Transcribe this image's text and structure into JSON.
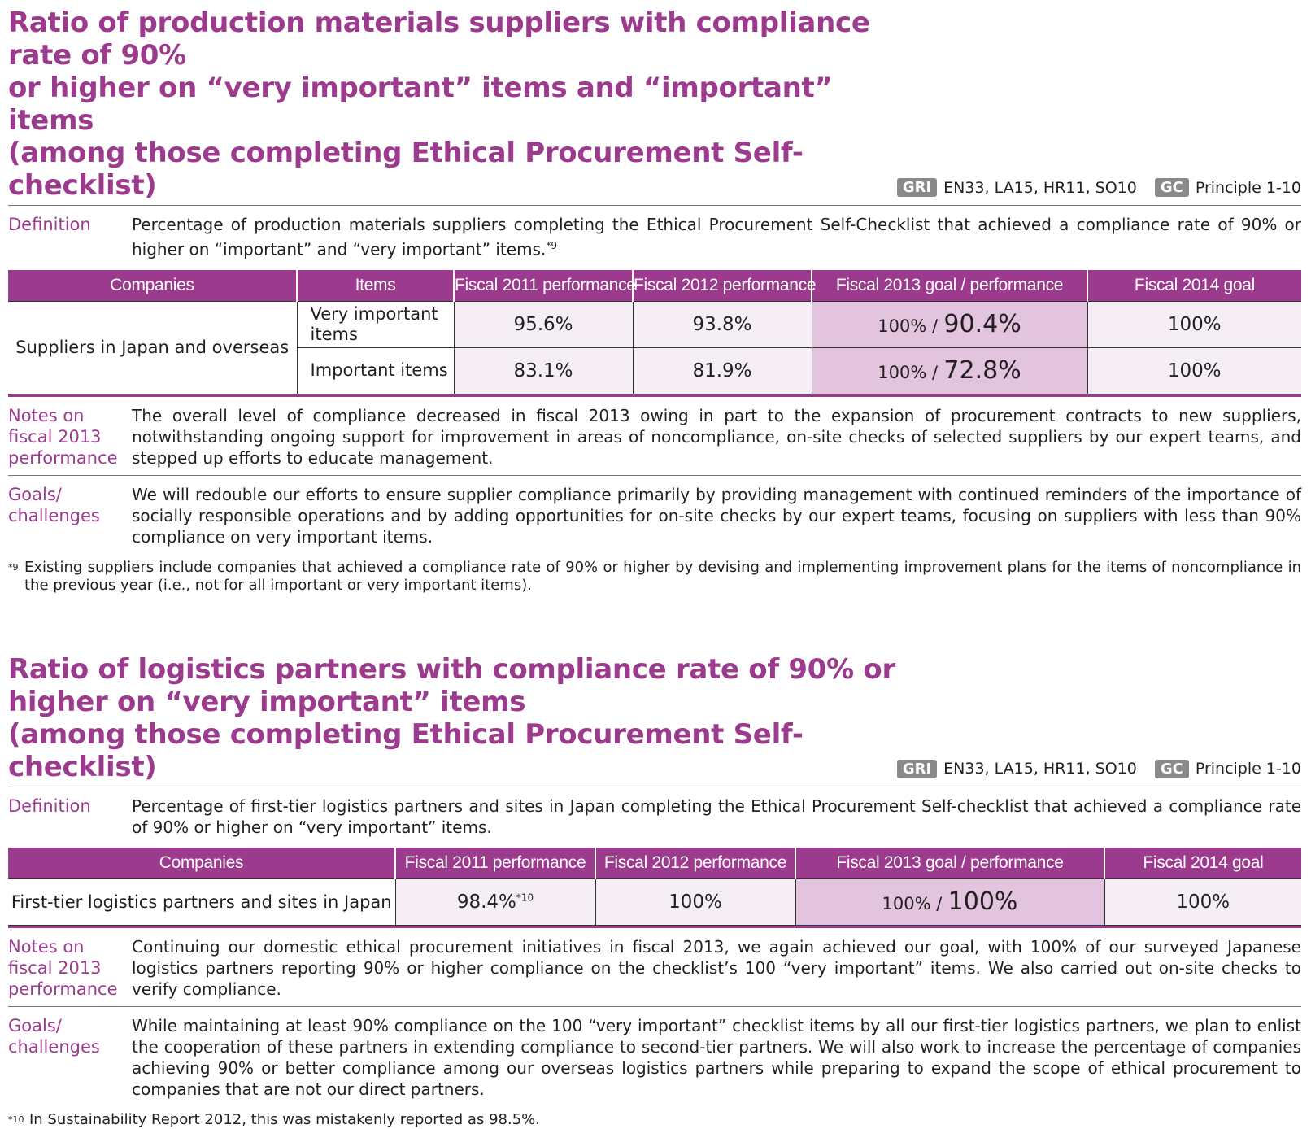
{
  "section1": {
    "title_line1": "Ratio of production materials suppliers with compliance rate of 90%",
    "title_line2": "or higher on “very important” items and “important” items",
    "title_line3": "(among those completing Ethical Procurement Self-checklist)",
    "gri_tag": "GRI",
    "gri_value": "EN33, LA15, HR11, SO10",
    "gc_tag": "GC",
    "gc_value": "Principle 1-10",
    "definition_label": "Definition",
    "definition_text": "Percentage of production materials suppliers completing the Ethical Procurement Self-Checklist that achieved a compliance rate of 90% or higher on “important” and “very important” items.",
    "definition_footnote_mark": "*9",
    "table": {
      "headers": [
        "Companies",
        "Items",
        "Fiscal 2011 performance",
        "Fiscal 2012 performance",
        "Fiscal 2013 goal / performance",
        "Fiscal 2014 goal"
      ],
      "company": "Suppliers in Japan and overseas",
      "rows": [
        {
          "item": "Very important items",
          "fy2011": "95.6%",
          "fy2012": "93.8%",
          "fy2013_goal": "100% /",
          "fy2013_perf": "90.4%",
          "fy2014": "100%"
        },
        {
          "item": "Important items",
          "fy2011": "83.1%",
          "fy2012": "81.9%",
          "fy2013_goal": "100% /",
          "fy2013_perf": "72.8%",
          "fy2014": "100%"
        }
      ]
    },
    "notes_label": "Notes on fiscal 2013 performance",
    "notes_text": "The overall level of compliance decreased in fiscal 2013 owing in part to the expansion of procurement contracts to new suppliers, notwithstanding ongoing support for improvement in areas of noncompliance, on-site checks of selected suppliers by our expert teams, and stepped up efforts to educate management.",
    "goals_label": "Goals/ challenges",
    "goals_text": "We will redouble our efforts to ensure supplier compliance primarily by providing management with continued reminders of the importance of socially responsible operations and by adding opportunities for on-site checks by our expert teams, focusing on suppliers with less than 90% compliance on very important items.",
    "footnote_mark": "*9",
    "footnote_text": "Existing suppliers include companies that achieved a compliance rate of 90% or higher by devising and implementing improvement plans for the items of noncompliance in the previous year (i.e., not for all important or very important items)."
  },
  "section2": {
    "title_line1": "Ratio of logistics partners with compliance rate of 90% or higher on “very important” items",
    "title_line2": "(among those completing Ethical Procurement Self-checklist)",
    "gri_tag": "GRI",
    "gri_value": "EN33, LA15, HR11, SO10",
    "gc_tag": "GC",
    "gc_value": "Principle 1-10",
    "definition_label": "Definition",
    "definition_text": "Percentage of first-tier logistics partners and sites in Japan completing the Ethical Procurement Self-checklist that achieved a compliance rate of 90% or higher on “very important” items.",
    "table": {
      "headers": [
        "Companies",
        "Fiscal 2011 performance",
        "Fiscal 2012 performance",
        "Fiscal 2013 goal / performance",
        "Fiscal 2014 goal"
      ],
      "row": {
        "company": "First-tier logistics partners and sites in Japan",
        "fy2011": "98.4%",
        "fy2011_mark": "*10",
        "fy2012": "100%",
        "fy2013_goal": "100% /",
        "fy2013_perf": "100%",
        "fy2014": "100%"
      }
    },
    "notes_label": "Notes on fiscal 2013 performance",
    "notes_text": "Continuing our domestic ethical procurement initiatives in fiscal 2013, we again achieved our goal, with 100% of our surveyed Japanese logistics partners reporting 90% or higher compliance on the checklist’s 100 “very important” items. We also carried out on-site checks to verify compliance.",
    "goals_label": "Goals/ challenges",
    "goals_text": "While maintaining at least 90% compliance on the 100 “very important” checklist items by all our first-tier logistics partners, we plan to enlist the cooperation of these partners in extending compliance to second-tier partners. We will also work to increase the percentage of companies achieving 90% or better compliance among our overseas logistics partners while preparing to expand the scope of ethical procurement to companies that are not our direct partners.",
    "footnote_mark": "*10",
    "footnote_text": "In Sustainability Report 2012, this was mistakenly reported as 98.5%."
  },
  "colors": {
    "accent": "#9c3b8e",
    "cell_light": "#f6eef5",
    "cell_highlight": "#e2c4de",
    "tag_gray": "#8a8a8a"
  }
}
